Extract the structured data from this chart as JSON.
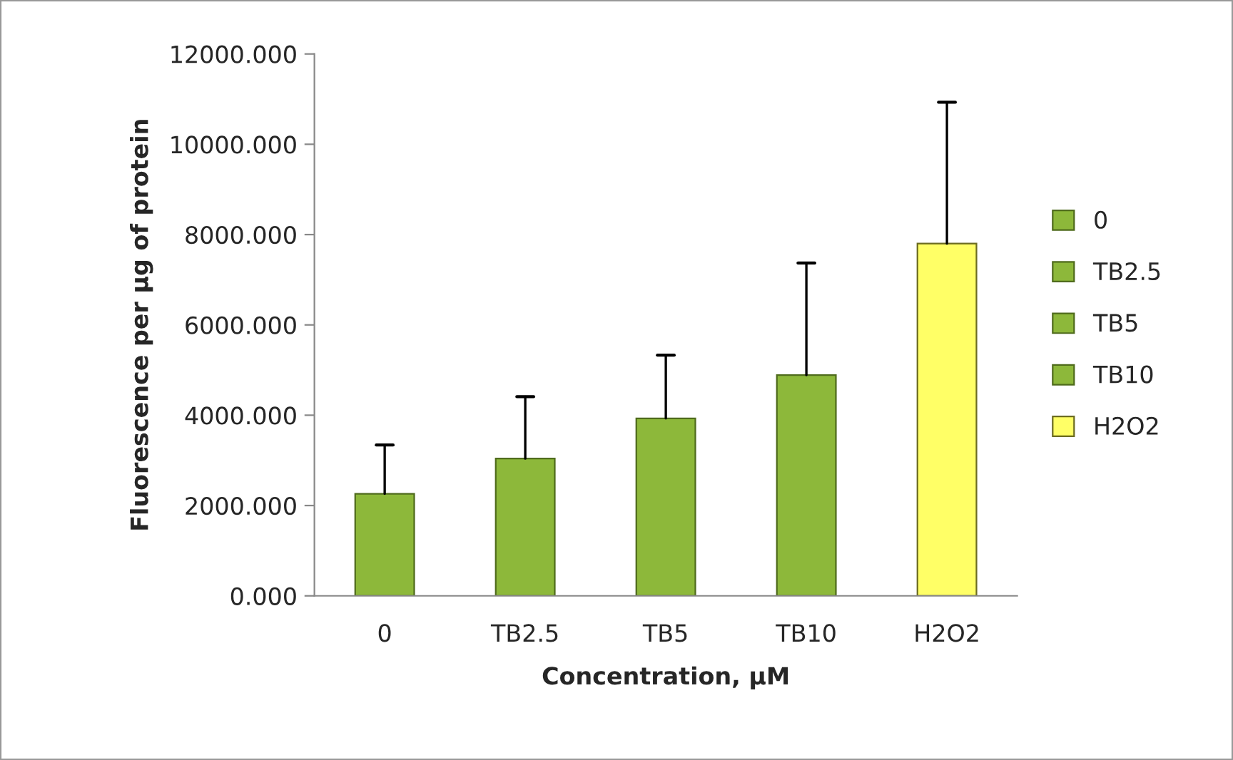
{
  "chart_data": {
    "type": "bar",
    "xlabel": "Concentration, µM",
    "ylabel": "Fluorescence per µg of protein",
    "categories": [
      "0",
      "TB2.5",
      "TB5",
      "TB10",
      "H2O2"
    ],
    "series": [
      {
        "name": "0",
        "color": "#8db83a",
        "values": [
          2260,
          null,
          null,
          null,
          null
        ],
        "errors": [
          [
            2260,
            3340
          ],
          null,
          null,
          null,
          null
        ]
      },
      {
        "name": "TB2.5",
        "color": "#8db83a",
        "values": [
          null,
          3040,
          null,
          null,
          null
        ],
        "errors": [
          null,
          [
            3040,
            4410
          ],
          null,
          null,
          null
        ]
      },
      {
        "name": "TB5",
        "color": "#8db83a",
        "values": [
          null,
          null,
          3930,
          null,
          null
        ],
        "errors": [
          null,
          null,
          [
            3930,
            5330
          ],
          null,
          null
        ]
      },
      {
        "name": "TB10",
        "color": "#8db83a",
        "values": [
          null,
          null,
          null,
          4890,
          null
        ],
        "errors": [
          null,
          null,
          null,
          [
            4890,
            7370
          ],
          null
        ]
      },
      {
        "name": "H2O2",
        "color": "#ffff66",
        "values": [
          null,
          null,
          null,
          null,
          7800
        ],
        "errors": [
          null,
          null,
          null,
          null,
          [
            7800,
            10930
          ]
        ]
      }
    ],
    "ylim": [
      0,
      12000
    ],
    "yticks": [
      {
        "value": 0,
        "label": "0.000"
      },
      {
        "value": 2000,
        "label": "2000.000"
      },
      {
        "value": 4000,
        "label": "4000.000"
      },
      {
        "value": 6000,
        "label": "6000.000"
      },
      {
        "value": 8000,
        "label": "8000.000"
      },
      {
        "value": 10000,
        "label": "10000.000"
      },
      {
        "value": 12000,
        "label": "12000.000"
      }
    ],
    "grid": false,
    "legend": "right"
  }
}
